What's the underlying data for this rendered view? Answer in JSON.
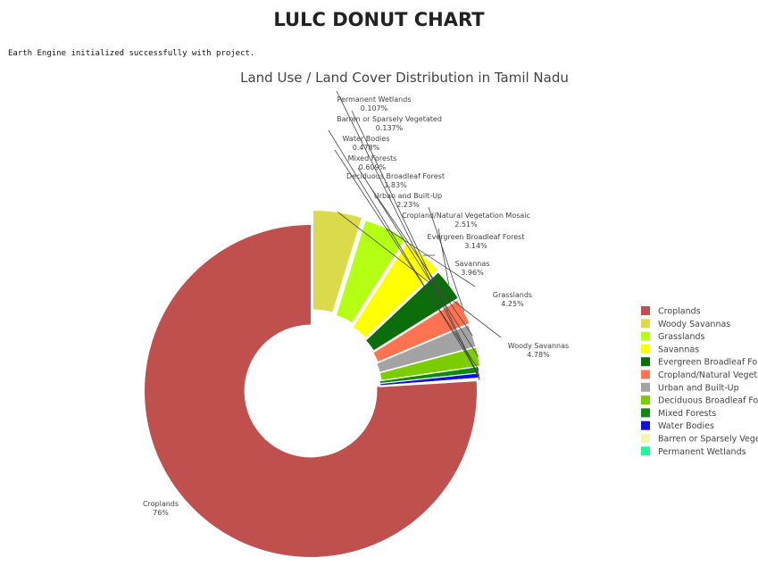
{
  "header": {
    "title": "LULC DONUT CHART",
    "status": "Earth Engine initialized successfully with project."
  },
  "chart_data": {
    "type": "pie",
    "title": "Land Use / Land Cover Distribution in Tamil Nadu",
    "hole": 0.4,
    "legend_position": "right",
    "categories": [
      "Croplands",
      "Woody Savannas",
      "Grasslands",
      "Savannas",
      "Evergreen Broadleaf Forest",
      "Cropland/Natural Vegetation Mosaic",
      "Urban and Built-Up",
      "Deciduous Broadleaf Forest",
      "Mixed Forests",
      "Water Bodies",
      "Barren or Sparsely Vegetated",
      "Permanent Wetlands"
    ],
    "legend_labels": [
      "Croplands",
      "Woody Savannas",
      "Grasslands",
      "Savannas",
      "Evergreen Broadleaf Fore",
      "Cropland/Natural Vegeta",
      "Urban and Built-Up",
      "Deciduous Broadleaf For",
      "Mixed Forests",
      "Water Bodies",
      "Barren or Sparsely Veget",
      "Permanent Wetlands"
    ],
    "values": [
      76,
      4.78,
      4.25,
      3.96,
      3.14,
      2.51,
      2.23,
      1.83,
      0.609,
      0.478,
      0.137,
      0.107
    ],
    "labels_text": [
      "76%",
      "4.78%",
      "4.25%",
      "3.96%",
      "3.14%",
      "2.51%",
      "2.23%",
      "1.83%",
      "0.609%",
      "0.478%",
      "0.137%",
      "0.107%"
    ],
    "colors": [
      "#c0504d",
      "#dada4a",
      "#b5ff14",
      "#ffff00",
      "#0b6e0b",
      "#ff7350",
      "#a3a3a3",
      "#7ccd00",
      "#0f8a0f",
      "#1010dd",
      "#f5f5b0",
      "#22f59a"
    ]
  }
}
